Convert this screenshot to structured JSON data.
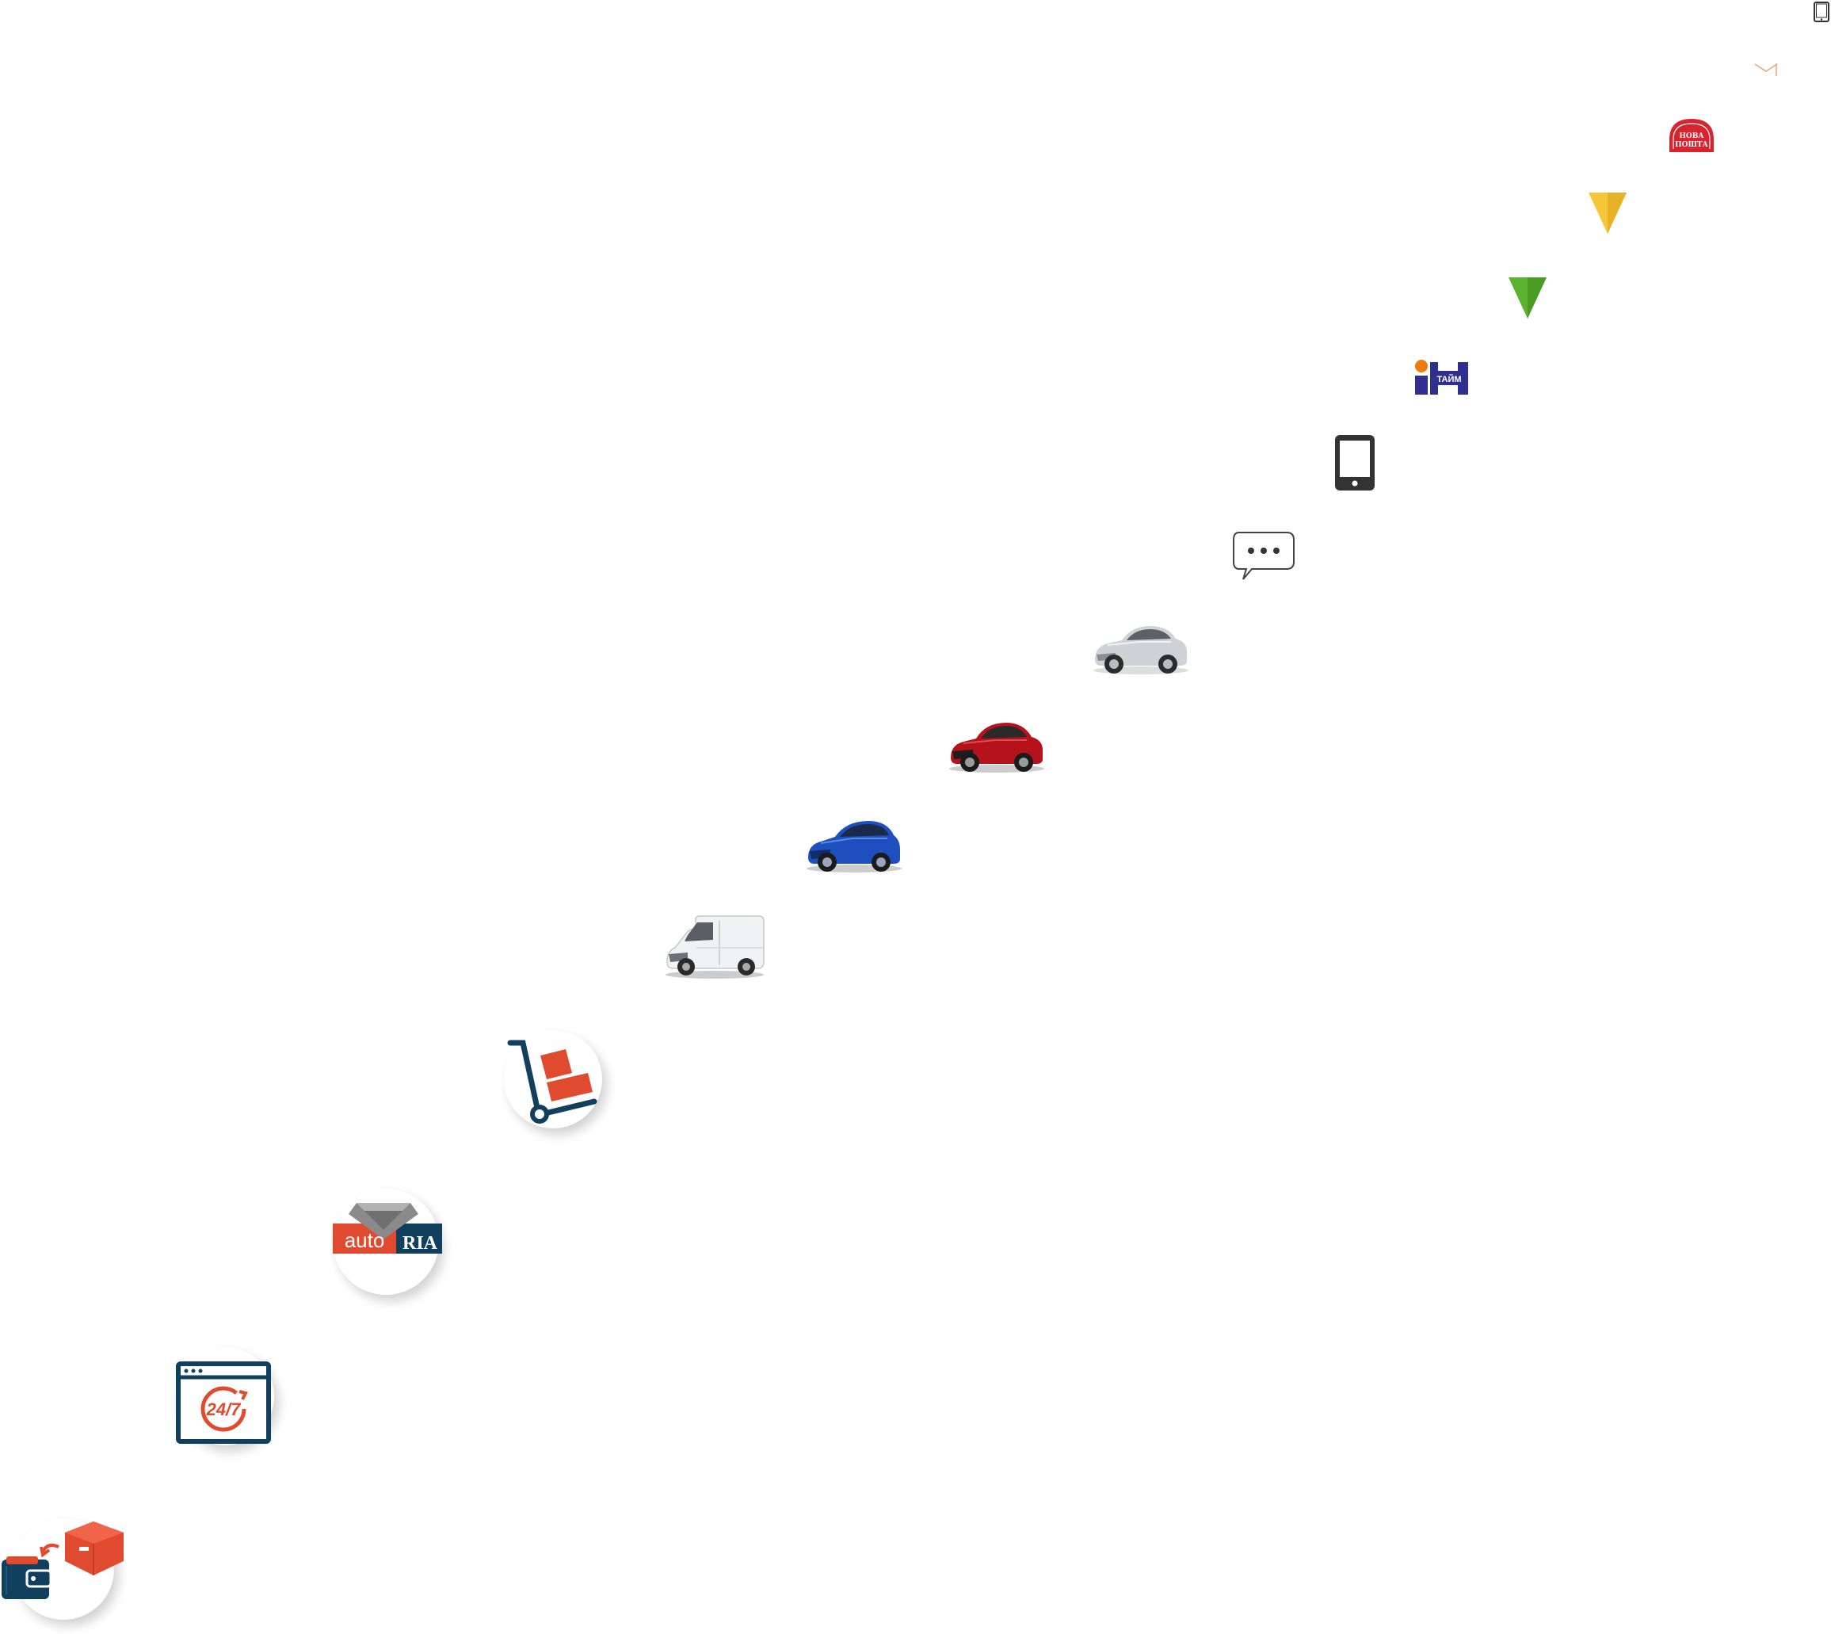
{
  "logos": {
    "nova_poshta_line1": "НОВА",
    "nova_poshta_line2": "ПОШТА",
    "intime_text": "ТАЙМ",
    "autoria_auto": "auto",
    "autoria_ria": "RIA",
    "support_247": "24/7"
  },
  "colors": {
    "nova_red": "#d9232e",
    "yellow_marker": "#f6c63b",
    "green_marker": "#5cb230",
    "intime_blue": "#2e2f8f",
    "intime_orange": "#f07a12",
    "navy": "#11405f",
    "orange_red": "#e04a2f",
    "gray_icon": "#333333"
  },
  "icons": [
    "tablet-icon",
    "mail-icon",
    "nova-poshta-logo",
    "yellow-triangle-marker-icon",
    "green-triangle-marker-icon",
    "intime-logo",
    "smartphone-icon",
    "chat-bubble-icon",
    "silver-sedan-image",
    "red-sedan-image",
    "blue-hatchback-image",
    "white-van-image",
    "hand-truck-icon",
    "autoria-logo",
    "support-247-icon",
    "wallet-box-icon"
  ]
}
